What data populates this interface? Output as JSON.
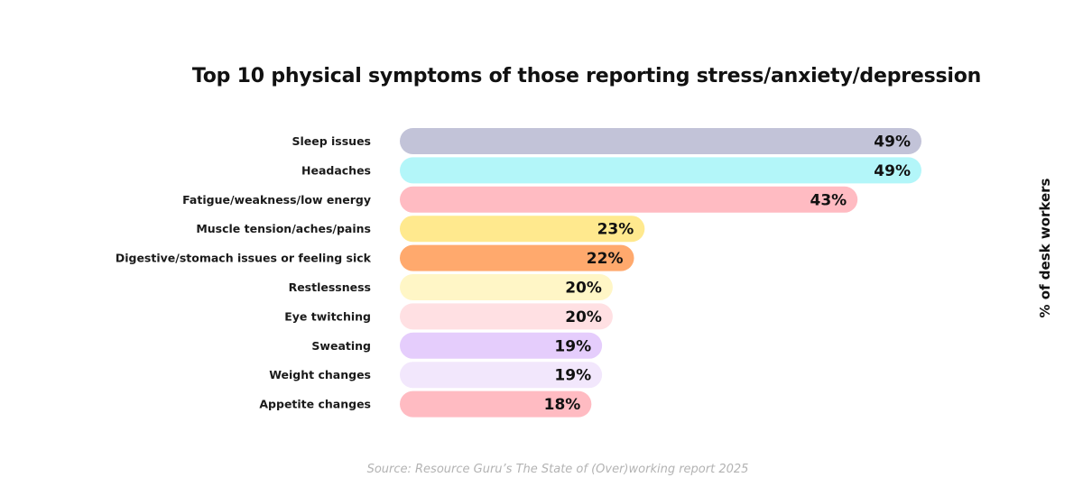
{
  "chart_data": {
    "type": "bar",
    "orientation": "horizontal",
    "title": "Top 10 physical symptoms of those reporting stress/anxiety/depression",
    "ylabel": "% of desk workers",
    "source": "Source: Resource Guru’s The State of (Over)working report 2025",
    "grid": false,
    "legend": "none",
    "xlim": [
      0,
      49
    ],
    "bars": [
      {
        "category": "Sleep issues",
        "value": 49,
        "label": "49%",
        "color": "#c2c3d8"
      },
      {
        "category": "Headaches",
        "value": 49,
        "label": "49%",
        "color": "#b3f6f9"
      },
      {
        "category": "Fatigue/weakness/low energy",
        "value": 43,
        "label": "43%",
        "color": "#ffbbc2"
      },
      {
        "category": "Muscle tension/aches/pains",
        "value": 23,
        "label": "23%",
        "color": "#ffe98e"
      },
      {
        "category": "Digestive/stomach issues or feeling sick",
        "value": 22,
        "label": "22%",
        "color": "#ffa96d"
      },
      {
        "category": "Restlessness",
        "value": 20,
        "label": "20%",
        "color": "#fff6c6"
      },
      {
        "category": "Eye twitching",
        "value": 20,
        "label": "20%",
        "color": "#ffe0e3"
      },
      {
        "category": "Sweating",
        "value": 19,
        "label": "19%",
        "color": "#e5cdfc"
      },
      {
        "category": "Weight changes",
        "value": 19,
        "label": "19%",
        "color": "#f2e7fc"
      },
      {
        "category": "Appetite changes",
        "value": 18,
        "label": "18%",
        "color": "#ffbbc2"
      }
    ]
  }
}
